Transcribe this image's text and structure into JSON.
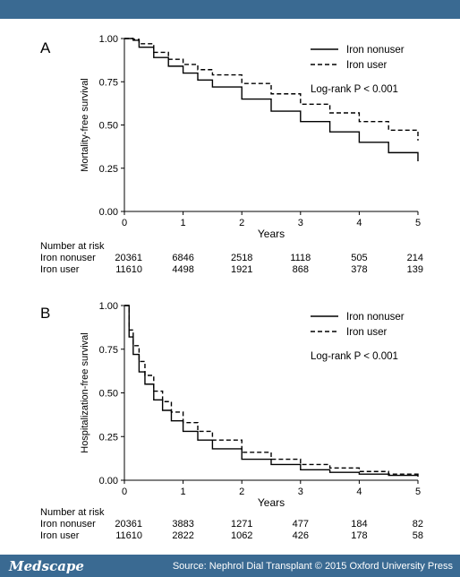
{
  "footer": {
    "logo": "Medscape",
    "source": "Source: Nephrol Dial Transplant © 2015 Oxford University Press"
  },
  "colors": {
    "bar": "#3a6a92",
    "line": "#000000"
  },
  "chart_data": [
    {
      "panel": "A",
      "type": "line",
      "xlabel": "Years",
      "ylabel": "Mortality-free survival",
      "annotation": "Log-rank P < 0.001",
      "xlim": [
        0,
        5
      ],
      "ylim": [
        0,
        1
      ],
      "xticks": [
        "0",
        "1",
        "2",
        "3",
        "4",
        "5"
      ],
      "yticks": [
        "0.00",
        "0.25",
        "0.50",
        "0.75",
        "1.00"
      ],
      "legend_position": "top-right",
      "series": [
        {
          "name": "Iron nonuser",
          "style": "solid",
          "x": [
            0,
            0.15,
            0.25,
            0.5,
            0.75,
            1,
            1.25,
            1.5,
            2,
            2.5,
            3,
            3.5,
            4,
            4.5,
            5
          ],
          "y": [
            1.0,
            0.99,
            0.95,
            0.89,
            0.84,
            0.8,
            0.76,
            0.72,
            0.65,
            0.58,
            0.52,
            0.46,
            0.4,
            0.34,
            0.29
          ]
        },
        {
          "name": "Iron user",
          "style": "dashed",
          "x": [
            0,
            0.15,
            0.25,
            0.5,
            0.75,
            1,
            1.25,
            1.5,
            2,
            2.5,
            3,
            3.5,
            4,
            4.5,
            5
          ],
          "y": [
            1.0,
            0.995,
            0.97,
            0.92,
            0.88,
            0.85,
            0.82,
            0.79,
            0.74,
            0.68,
            0.62,
            0.57,
            0.52,
            0.47,
            0.41
          ]
        }
      ],
      "risk_table": {
        "header": "Number at risk",
        "rows": [
          {
            "label": "Iron nonuser",
            "values": [
              "20361",
              "6846",
              "2518",
              "1118",
              "505",
              "214"
            ]
          },
          {
            "label": "Iron user",
            "values": [
              "11610",
              "4498",
              "1921",
              "868",
              "378",
              "139"
            ]
          }
        ]
      }
    },
    {
      "panel": "B",
      "type": "line",
      "xlabel": "Years",
      "ylabel": "Hospitalization-free survival",
      "annotation": "Log-rank P < 0.001",
      "xlim": [
        0,
        5
      ],
      "ylim": [
        0,
        1
      ],
      "xticks": [
        "0",
        "1",
        "2",
        "3",
        "4",
        "5"
      ],
      "yticks": [
        "0.00",
        "0.25",
        "0.50",
        "0.75",
        "1.00"
      ],
      "legend_position": "top-right",
      "series": [
        {
          "name": "Iron nonuser",
          "style": "solid",
          "x": [
            0,
            0.08,
            0.15,
            0.25,
            0.35,
            0.5,
            0.65,
            0.8,
            1,
            1.25,
            1.5,
            2,
            2.5,
            3,
            3.5,
            4,
            4.5,
            5
          ],
          "y": [
            1.0,
            0.82,
            0.72,
            0.62,
            0.55,
            0.46,
            0.4,
            0.34,
            0.28,
            0.23,
            0.18,
            0.12,
            0.09,
            0.06,
            0.045,
            0.035,
            0.028,
            0.02
          ]
        },
        {
          "name": "Iron user",
          "style": "dashed",
          "x": [
            0,
            0.08,
            0.15,
            0.25,
            0.35,
            0.5,
            0.65,
            0.8,
            1,
            1.25,
            1.5,
            2,
            2.5,
            3,
            3.5,
            4,
            4.5,
            5
          ],
          "y": [
            1.0,
            0.86,
            0.77,
            0.68,
            0.6,
            0.51,
            0.45,
            0.39,
            0.33,
            0.28,
            0.23,
            0.16,
            0.12,
            0.09,
            0.07,
            0.05,
            0.035,
            0.025
          ]
        }
      ],
      "risk_table": {
        "header": "Number at risk",
        "rows": [
          {
            "label": "Iron nonuser",
            "values": [
              "20361",
              "3883",
              "1271",
              "477",
              "184",
              "82"
            ]
          },
          {
            "label": "Iron user",
            "values": [
              "11610",
              "2822",
              "1062",
              "426",
              "178",
              "58"
            ]
          }
        ]
      }
    }
  ]
}
